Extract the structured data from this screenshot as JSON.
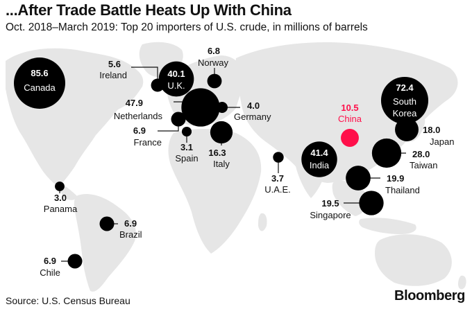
{
  "header": {
    "title": "...After Trade Battle Heats Up With China",
    "subtitle": "Oct. 2018–March 2019: Top 20 importers of U.S. crude, in millions of barrels"
  },
  "footer": {
    "source": "Source: U.S. Census Bureau",
    "brand": "Bloomberg"
  },
  "colors": {
    "bubble": "#000000",
    "highlight": "#ff0f4a",
    "land": "#e6e6e6"
  },
  "chart_data": {
    "type": "bubble-map",
    "title": "...After Trade Battle Heats Up With China",
    "subtitle": "Oct. 2018–March 2019: Top 20 importers of U.S. crude, in millions of barrels",
    "unit": "millions of barrels",
    "period": "Oct. 2018–March 2019",
    "points": [
      {
        "country": "Canada",
        "value": 85.6,
        "value_label": "85.6"
      },
      {
        "country": "South Korea",
        "value": 72.4,
        "value_label": "72.4",
        "label_lines": [
          "South",
          "Korea"
        ]
      },
      {
        "country": "Netherlands",
        "value": 47.9,
        "value_label": "47.9"
      },
      {
        "country": "India",
        "value": 41.4,
        "value_label": "41.4"
      },
      {
        "country": "U.K.",
        "value": 40.1,
        "value_label": "40.1"
      },
      {
        "country": "Taiwan",
        "value": 28.0,
        "value_label": "28.0"
      },
      {
        "country": "Thailand",
        "value": 19.9,
        "value_label": "19.9"
      },
      {
        "country": "Singapore",
        "value": 19.5,
        "value_label": "19.5"
      },
      {
        "country": "Japan",
        "value": 18.0,
        "value_label": "18.0"
      },
      {
        "country": "Italy",
        "value": 16.3,
        "value_label": "16.3"
      },
      {
        "country": "China",
        "value": 10.5,
        "value_label": "10.5",
        "highlight": true
      },
      {
        "country": "Norway",
        "value": 6.8,
        "value_label": "6.8"
      },
      {
        "country": "France",
        "value": 6.9,
        "value_label": "6.9"
      },
      {
        "country": "Brazil",
        "value": 6.9,
        "value_label": "6.9"
      },
      {
        "country": "Chile",
        "value": 6.9,
        "value_label": "6.9"
      },
      {
        "country": "Ireland",
        "value": 5.6,
        "value_label": "5.6"
      },
      {
        "country": "Germany",
        "value": 4.0,
        "value_label": "4.0"
      },
      {
        "country": "U.A.E.",
        "value": 3.7,
        "value_label": "3.7"
      },
      {
        "country": "Spain",
        "value": 3.1,
        "value_label": "3.1"
      },
      {
        "country": "Panama",
        "value": 3.0,
        "value_label": "3.0"
      }
    ]
  }
}
